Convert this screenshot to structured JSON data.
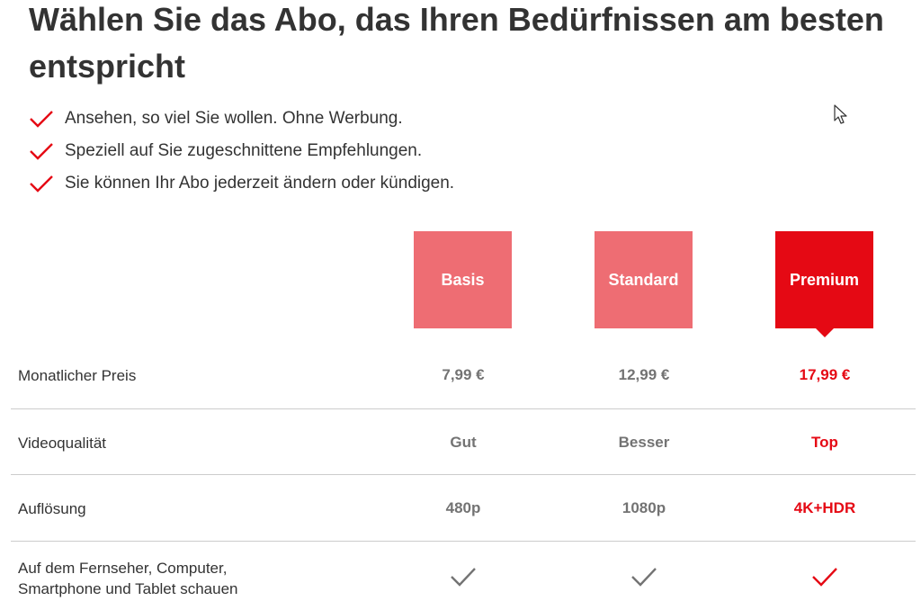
{
  "heading": "Wählen Sie das Abo, das Ihren Bedürfnissen am besten entspricht",
  "benefits": [
    "Ansehen, so viel Sie wollen. Ohne Werbung.",
    "Speziell auf Sie zugeschnittene Empfehlungen.",
    "Sie können Ihr Abo jederzeit ändern oder kündigen."
  ],
  "plans": [
    {
      "name": "Basis",
      "selected": false
    },
    {
      "name": "Standard",
      "selected": false
    },
    {
      "name": "Premium",
      "selected": true
    }
  ],
  "rows": [
    {
      "label": "Monatlicher Preis",
      "values": [
        "7,99 €",
        "12,99 €",
        "17,99 €"
      ]
    },
    {
      "label": "Videoqualität",
      "values": [
        "Gut",
        "Besser",
        "Top"
      ]
    },
    {
      "label": "Auflösung",
      "values": [
        "480p",
        "1080p",
        "4K+HDR"
      ]
    },
    {
      "label": "Auf dem Fernseher, Computer, Smartphone und Tablet schauen",
      "values": [
        "check",
        "check",
        "check"
      ]
    }
  ],
  "colors": {
    "accent": "#e50914",
    "plan_dim": "#ee6d73",
    "text": "#333333",
    "muted": "#737373",
    "divider": "#cccccc"
  },
  "icons": {
    "benefit": "check-icon",
    "feature": "check-icon",
    "pointer": "mouse-cursor-icon"
  }
}
